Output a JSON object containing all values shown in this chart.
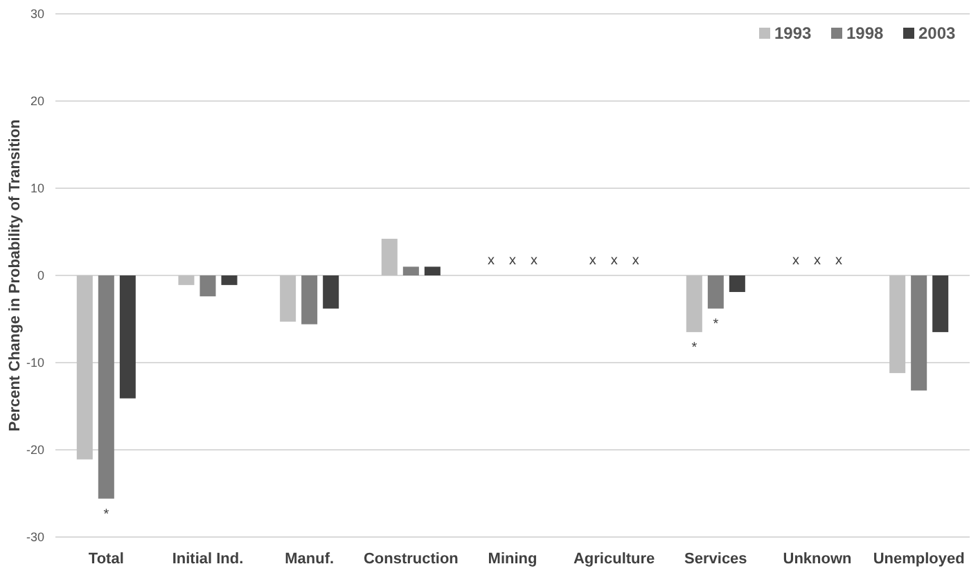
{
  "chart_data": {
    "type": "bar",
    "ylabel": "Percent Change in Probability of Transition",
    "categories": [
      "Total",
      "Initial Ind.",
      "Manuf.",
      "Construction",
      "Mining",
      "Agriculture",
      "Services",
      "Unknown",
      "Unemployed"
    ],
    "series": [
      {
        "name": "1993",
        "color": "#bfbfbf",
        "values": [
          -21.1,
          -1.1,
          -5.3,
          4.2,
          null,
          null,
          -6.5,
          null,
          -11.2
        ],
        "value_labels": [
          null,
          null,
          null,
          null,
          "x",
          "x",
          "*",
          "x",
          null
        ]
      },
      {
        "name": "1998",
        "color": "#7f7f7f",
        "values": [
          -25.6,
          -2.4,
          -5.6,
          1.0,
          null,
          null,
          -3.8,
          null,
          -13.2
        ],
        "value_labels": [
          "*",
          null,
          null,
          null,
          "x",
          "x",
          "*",
          "x",
          null
        ]
      },
      {
        "name": "2003",
        "color": "#404040",
        "values": [
          -14.1,
          -1.1,
          -3.8,
          1.0,
          null,
          null,
          -1.9,
          null,
          -6.5
        ],
        "value_labels": [
          null,
          null,
          null,
          null,
          "x",
          "x",
          null,
          "x",
          null
        ]
      }
    ],
    "ylim": [
      -30,
      30
    ],
    "yticks": [
      -30,
      -20,
      -10,
      0,
      10,
      20,
      30
    ],
    "grid": "y",
    "legend": "top right"
  }
}
